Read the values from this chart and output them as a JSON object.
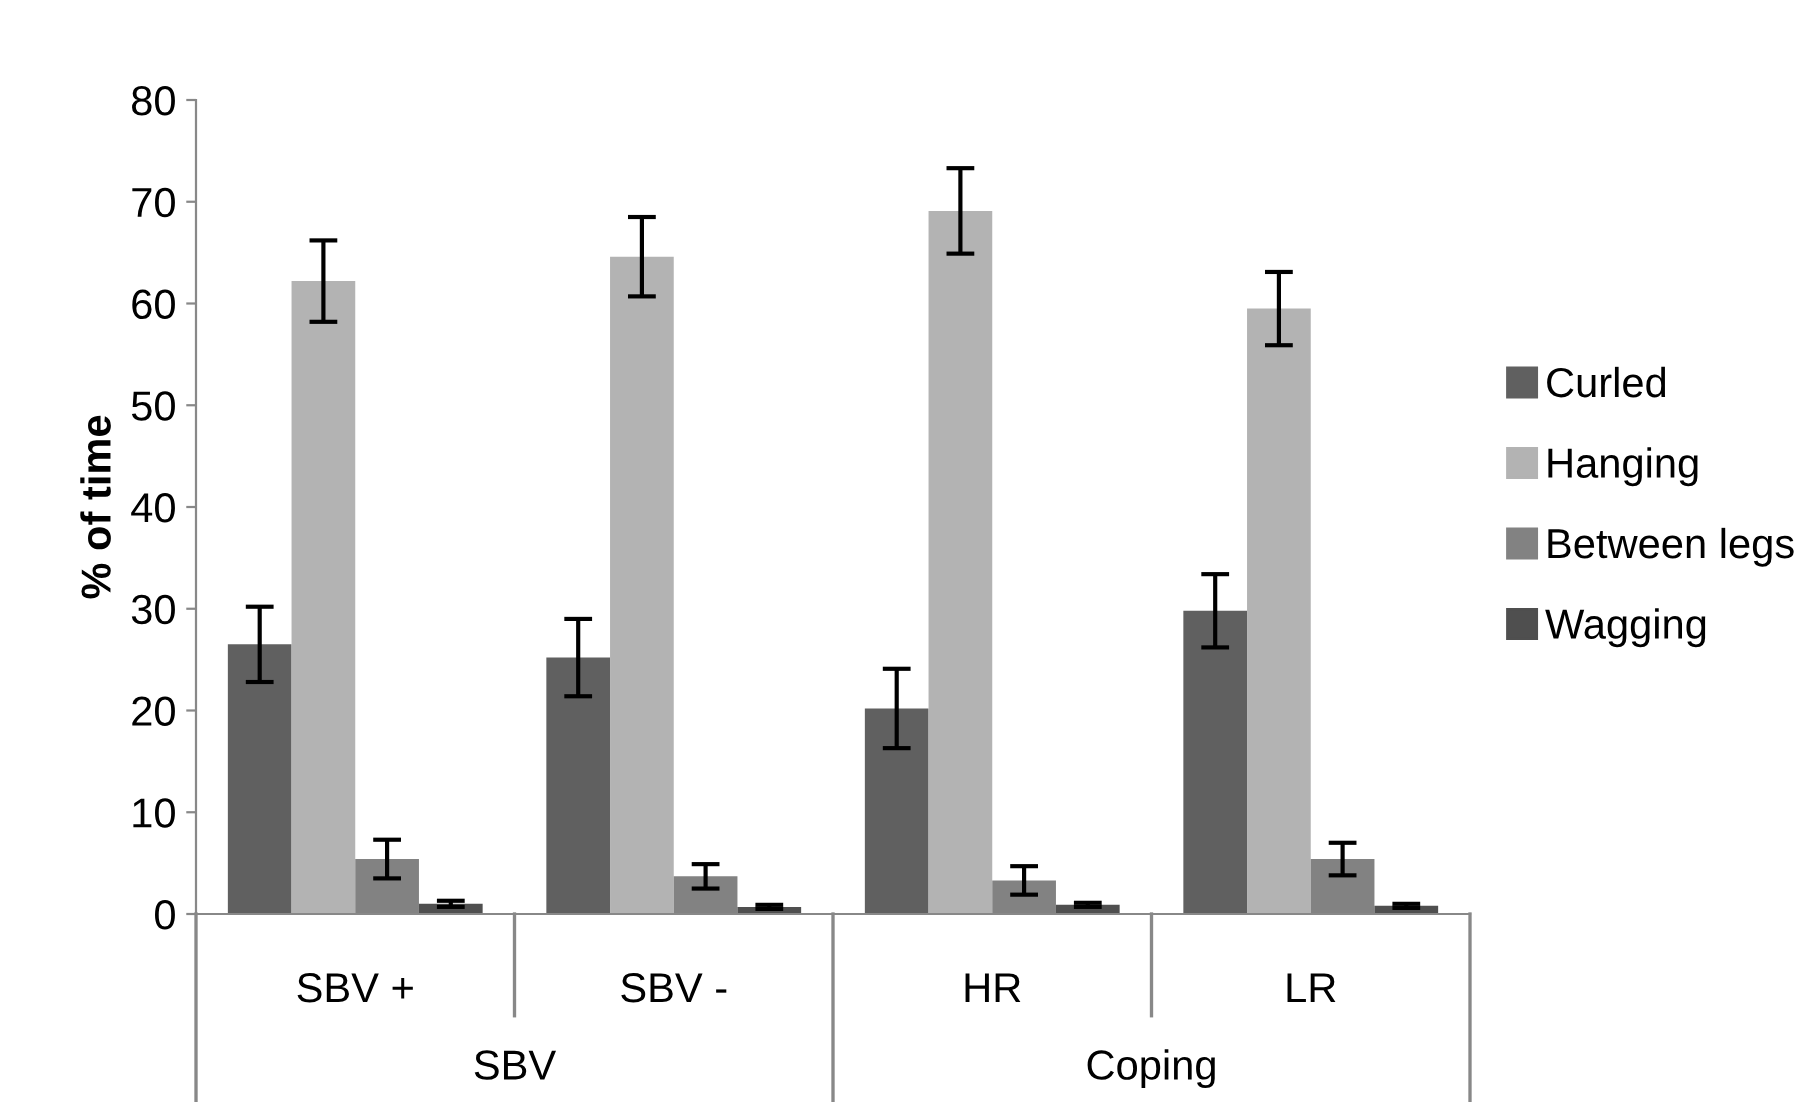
{
  "chart_data": {
    "type": "bar",
    "ylabel": "% of time",
    "categories": [
      "SBV +",
      "SBV -",
      "HR",
      "LR"
    ],
    "annotations": [
      "SBV",
      "Coping"
    ],
    "series": [
      {
        "name": "Curled",
        "color": "#606060",
        "values": [
          26.5,
          25.2,
          20.2,
          29.8
        ],
        "errors": [
          3.7,
          3.8,
          3.9,
          3.6
        ]
      },
      {
        "name": "Hanging",
        "color": "#b3b3b3",
        "values": [
          62.2,
          64.6,
          69.1,
          59.5
        ],
        "errors": [
          4.0,
          3.9,
          4.2,
          3.6
        ]
      },
      {
        "name": "Between legs",
        "color": "#828282",
        "values": [
          5.4,
          3.7,
          3.3,
          5.4
        ],
        "errors": [
          1.9,
          1.2,
          1.4,
          1.6
        ]
      },
      {
        "name": "Wagging",
        "color": "#4f4f4f",
        "values": [
          1.0,
          0.7,
          0.9,
          0.8
        ],
        "errors": [
          0.3,
          0.2,
          0.2,
          0.2
        ]
      }
    ],
    "ylim": [
      0,
      80
    ],
    "yticks": [
      0,
      10,
      20,
      30,
      40,
      50,
      60,
      70,
      80
    ],
    "grid": false,
    "legend": "right"
  }
}
